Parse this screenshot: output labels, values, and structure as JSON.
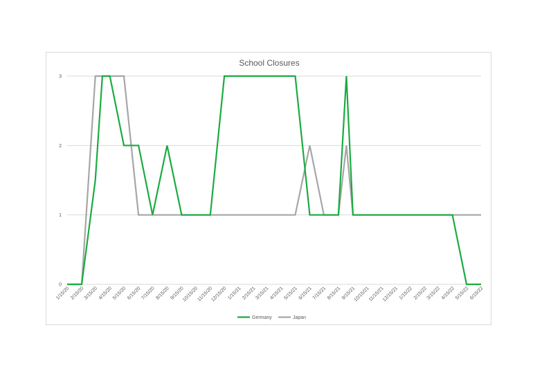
{
  "chart_data": {
    "type": "line",
    "title": "School Closures",
    "xlabel": "",
    "ylabel": "",
    "ylim": [
      0,
      3
    ],
    "yticks": [
      0,
      1,
      2,
      3
    ],
    "grid": true,
    "legend": "bottom",
    "x_tick_labels": [
      "1/15/20",
      "2/15/20",
      "3/15/20",
      "4/15/20",
      "5/15/20",
      "6/15/20",
      "7/15/20",
      "8/15/20",
      "9/15/20",
      "10/15/20",
      "11/15/20",
      "12/15/20",
      "1/15/21",
      "2/15/21",
      "3/15/21",
      "4/15/21",
      "5/15/21",
      "6/15/21",
      "7/15/21",
      "8/15/21",
      "9/15/21",
      "10/15/21",
      "11/15/21",
      "12/15/21",
      "1/15/22",
      "2/15/22",
      "3/15/22",
      "4/15/22",
      "5/15/22",
      "6/15/22"
    ],
    "series": [
      {
        "name": "Germany",
        "color": "#1aab40",
        "points": [
          [
            "1/15/20",
            0
          ],
          [
            "2/15/20",
            0
          ],
          [
            "3/15/20",
            1.5
          ],
          [
            "3/30/20",
            3
          ],
          [
            "4/15/20",
            3
          ],
          [
            "5/15/20",
            2
          ],
          [
            "6/15/20",
            2
          ],
          [
            "7/15/20",
            1
          ],
          [
            "8/15/20",
            2
          ],
          [
            "9/15/20",
            1
          ],
          [
            "10/15/20",
            1
          ],
          [
            "11/15/20",
            1
          ],
          [
            "12/15/20",
            3
          ],
          [
            "1/15/21",
            3
          ],
          [
            "2/15/21",
            3
          ],
          [
            "3/15/21",
            3
          ],
          [
            "4/15/21",
            3
          ],
          [
            "5/15/21",
            3
          ],
          [
            "6/15/21",
            1
          ],
          [
            "7/15/21",
            1
          ],
          [
            "8/15/21",
            1
          ],
          [
            "9/1/21",
            3
          ],
          [
            "9/15/21",
            1
          ],
          [
            "10/15/21",
            1
          ],
          [
            "11/15/21",
            1
          ],
          [
            "12/15/21",
            1
          ],
          [
            "1/15/22",
            1
          ],
          [
            "2/15/22",
            1
          ],
          [
            "3/15/22",
            1
          ],
          [
            "4/15/22",
            1
          ],
          [
            "5/15/22",
            0
          ],
          [
            "6/15/22",
            0
          ]
        ]
      },
      {
        "name": "Japan",
        "color": "#a6a6a6",
        "points": [
          [
            "1/15/20",
            0
          ],
          [
            "2/15/20",
            0
          ],
          [
            "3/15/20",
            3
          ],
          [
            "4/15/20",
            3
          ],
          [
            "5/15/20",
            3
          ],
          [
            "6/15/20",
            1
          ],
          [
            "7/15/20",
            1
          ],
          [
            "8/15/20",
            1
          ],
          [
            "9/15/20",
            1
          ],
          [
            "10/15/20",
            1
          ],
          [
            "11/15/20",
            1
          ],
          [
            "12/15/20",
            1
          ],
          [
            "1/15/21",
            1
          ],
          [
            "2/15/21",
            1
          ],
          [
            "3/15/21",
            1
          ],
          [
            "4/15/21",
            1
          ],
          [
            "5/15/21",
            1
          ],
          [
            "6/15/21",
            2
          ],
          [
            "7/15/21",
            1
          ],
          [
            "8/15/21",
            1
          ],
          [
            "9/1/21",
            2
          ],
          [
            "9/15/21",
            1
          ],
          [
            "10/15/21",
            1
          ],
          [
            "11/15/21",
            1
          ],
          [
            "12/15/21",
            1
          ],
          [
            "1/15/22",
            1
          ],
          [
            "2/15/22",
            1
          ],
          [
            "3/15/22",
            1
          ],
          [
            "4/15/22",
            1
          ],
          [
            "5/15/22",
            1
          ],
          [
            "6/15/22",
            1
          ]
        ]
      }
    ]
  }
}
